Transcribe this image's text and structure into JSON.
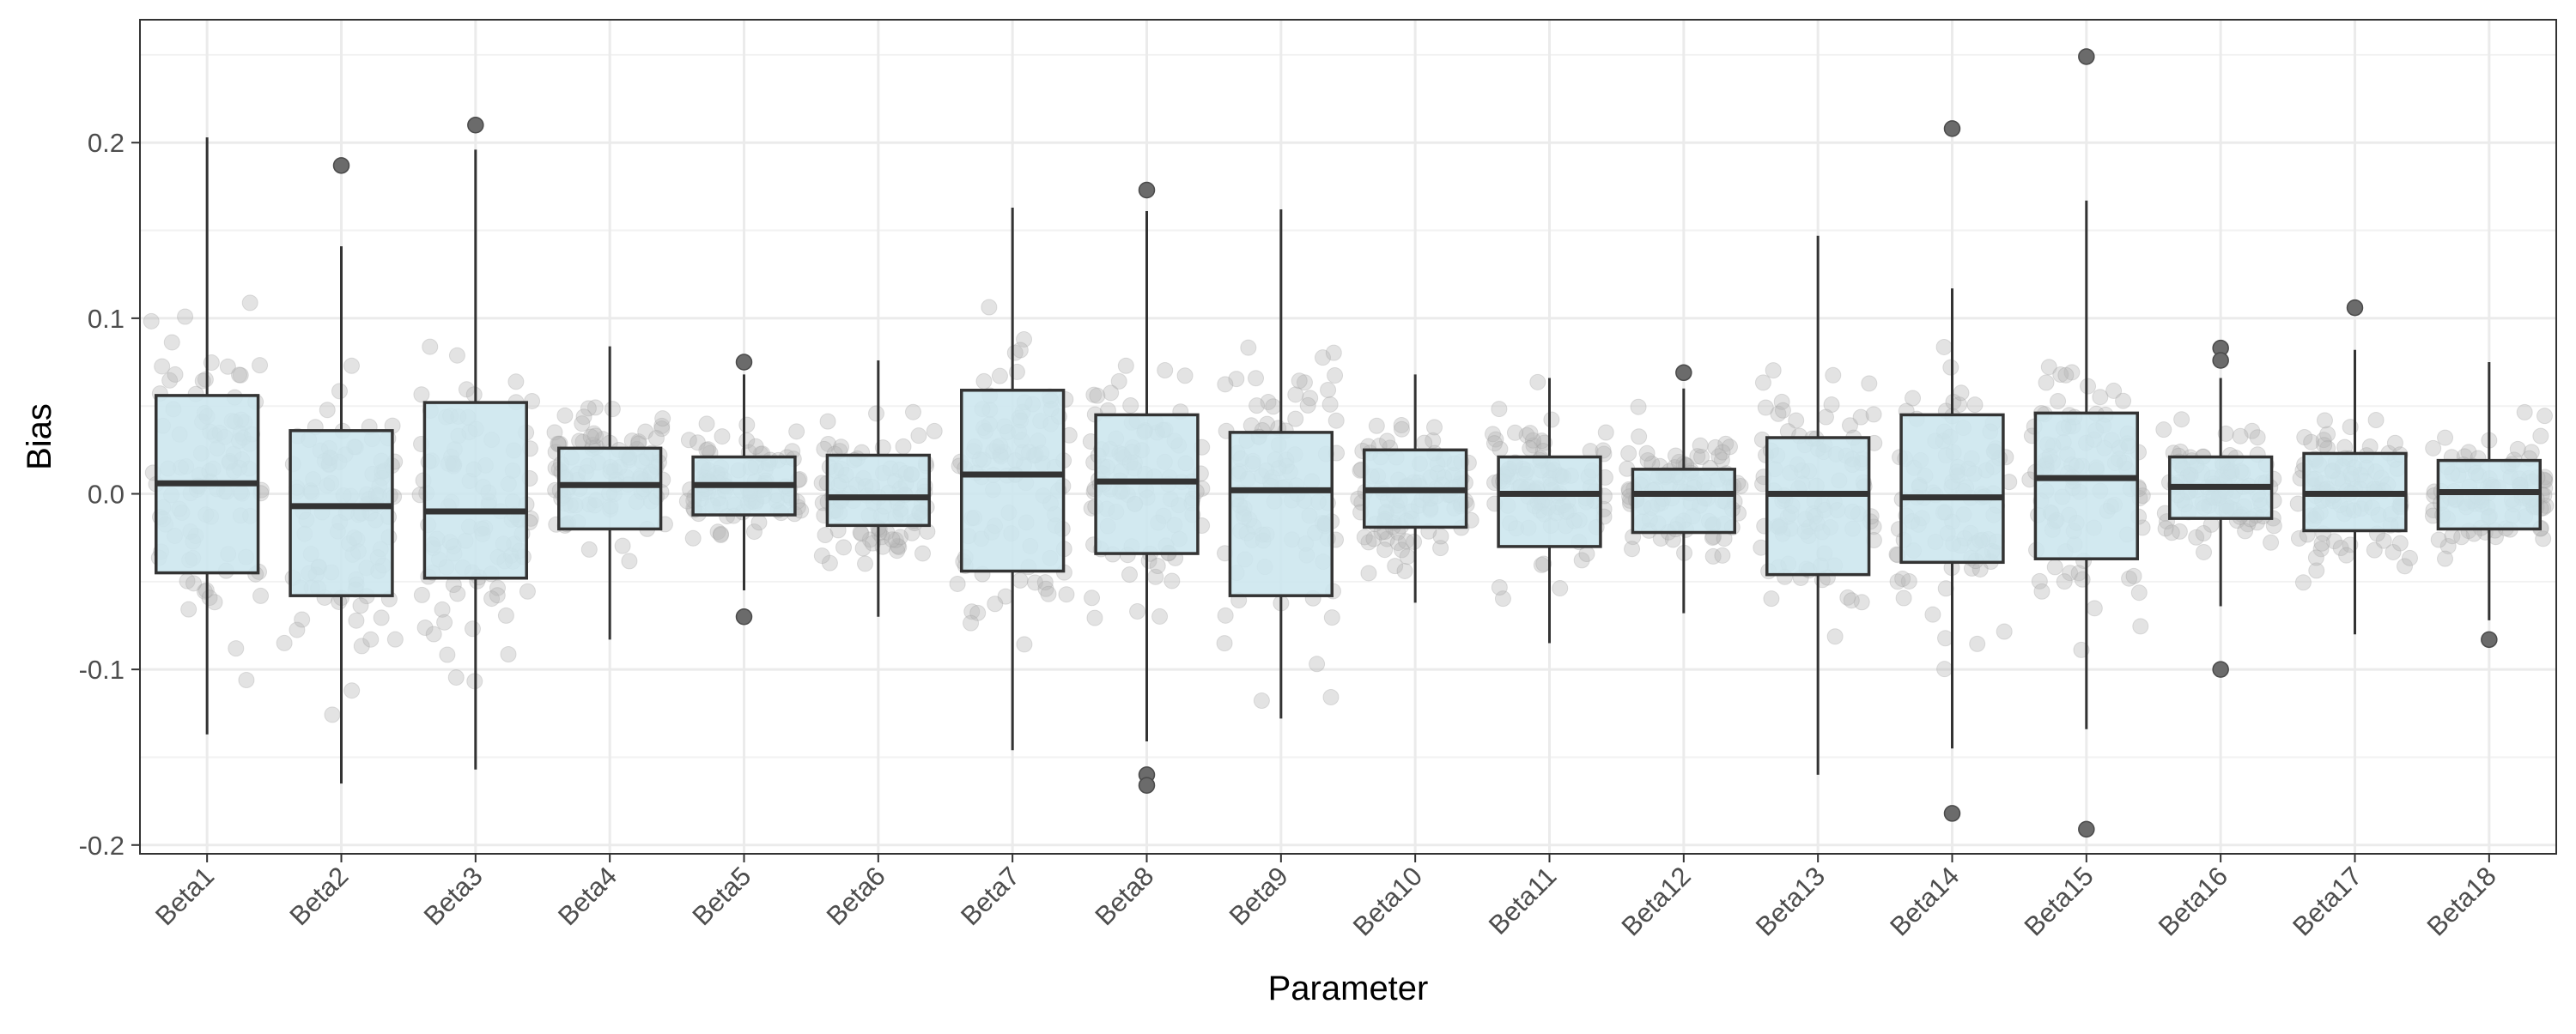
{
  "chart_data": {
    "type": "boxplot",
    "title": "",
    "xlabel": "Parameter",
    "ylabel": "Bias",
    "ylim": [
      -0.205,
      0.27
    ],
    "yticks": [
      -0.2,
      -0.1,
      0.0,
      0.1,
      0.2
    ],
    "ytick_labels": [
      "-0.2",
      "-0.1",
      "0.0",
      "0.1",
      "0.2"
    ],
    "grid": true,
    "legend": "none",
    "box_fill": "#cce6ee",
    "box_stroke": "#333333",
    "jitter_color": "#b8b8b8",
    "outlier_color": "#6b6b6b",
    "categories": [
      "Beta1",
      "Beta2",
      "Beta3",
      "Beta4",
      "Beta5",
      "Beta6",
      "Beta7",
      "Beta8",
      "Beta9",
      "Beta10",
      "Beta11",
      "Beta12",
      "Beta13",
      "Beta14",
      "Beta15",
      "Beta16",
      "Beta17",
      "Beta18"
    ],
    "boxes": [
      {
        "category": "Beta1",
        "min": -0.137,
        "q1": -0.045,
        "median": 0.006,
        "q3": 0.056,
        "max": 0.203,
        "outliers": []
      },
      {
        "category": "Beta2",
        "min": -0.165,
        "q1": -0.058,
        "median": -0.007,
        "q3": 0.036,
        "max": 0.141,
        "outliers": [
          0.187
        ]
      },
      {
        "category": "Beta3",
        "min": -0.157,
        "q1": -0.048,
        "median": -0.01,
        "q3": 0.052,
        "max": 0.196,
        "outliers": [
          0.21
        ]
      },
      {
        "category": "Beta4",
        "min": -0.083,
        "q1": -0.02,
        "median": 0.005,
        "q3": 0.026,
        "max": 0.084,
        "outliers": []
      },
      {
        "category": "Beta5",
        "min": -0.055,
        "q1": -0.012,
        "median": 0.005,
        "q3": 0.021,
        "max": 0.068,
        "outliers": [
          0.075,
          -0.07
        ]
      },
      {
        "category": "Beta6",
        "min": -0.07,
        "q1": -0.018,
        "median": -0.002,
        "q3": 0.022,
        "max": 0.076,
        "outliers": []
      },
      {
        "category": "Beta7",
        "min": -0.146,
        "q1": -0.044,
        "median": 0.011,
        "q3": 0.059,
        "max": 0.163,
        "outliers": []
      },
      {
        "category": "Beta8",
        "min": -0.141,
        "q1": -0.034,
        "median": 0.007,
        "q3": 0.045,
        "max": 0.161,
        "outliers": [
          0.173,
          -0.16,
          -0.166
        ]
      },
      {
        "category": "Beta9",
        "min": -0.128,
        "q1": -0.058,
        "median": 0.002,
        "q3": 0.035,
        "max": 0.162,
        "outliers": []
      },
      {
        "category": "Beta10",
        "min": -0.062,
        "q1": -0.019,
        "median": 0.002,
        "q3": 0.025,
        "max": 0.068,
        "outliers": []
      },
      {
        "category": "Beta11",
        "min": -0.085,
        "q1": -0.03,
        "median": 0.0,
        "q3": 0.021,
        "max": 0.066,
        "outliers": []
      },
      {
        "category": "Beta12",
        "min": -0.068,
        "q1": -0.022,
        "median": 0.0,
        "q3": 0.014,
        "max": 0.06,
        "outliers": [
          0.069
        ]
      },
      {
        "category": "Beta13",
        "min": -0.16,
        "q1": -0.046,
        "median": 0.0,
        "q3": 0.032,
        "max": 0.147,
        "outliers": []
      },
      {
        "category": "Beta14",
        "min": -0.145,
        "q1": -0.039,
        "median": -0.002,
        "q3": 0.045,
        "max": 0.117,
        "outliers": [
          0.208,
          -0.182
        ]
      },
      {
        "category": "Beta15",
        "min": -0.134,
        "q1": -0.037,
        "median": 0.009,
        "q3": 0.046,
        "max": 0.167,
        "outliers": [
          0.249,
          -0.191
        ]
      },
      {
        "category": "Beta16",
        "min": -0.064,
        "q1": -0.014,
        "median": 0.004,
        "q3": 0.021,
        "max": 0.066,
        "outliers": [
          0.083,
          0.076,
          -0.1
        ]
      },
      {
        "category": "Beta17",
        "min": -0.08,
        "q1": -0.021,
        "median": 0.0,
        "q3": 0.023,
        "max": 0.082,
        "outliers": [
          0.106
        ]
      },
      {
        "category": "Beta18",
        "min": -0.072,
        "q1": -0.02,
        "median": 0.001,
        "q3": 0.019,
        "max": 0.075,
        "outliers": [
          -0.083
        ]
      }
    ]
  }
}
